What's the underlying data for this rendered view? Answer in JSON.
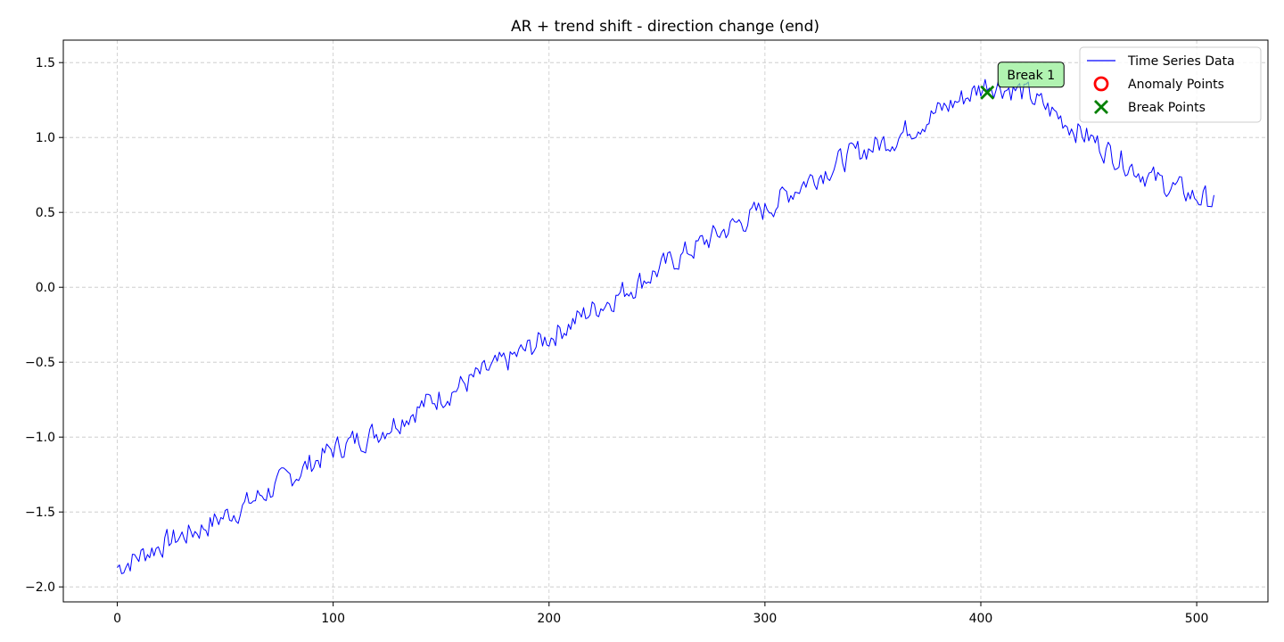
{
  "chart_data": {
    "type": "line",
    "title": "AR + trend shift - direction change (end)",
    "xlabel": "",
    "ylabel": "",
    "xlim": [
      -25,
      533
    ],
    "ylim": [
      -2.1,
      1.65
    ],
    "x_ticks": [
      0,
      100,
      200,
      300,
      400,
      500
    ],
    "x_tick_labels": [
      "0",
      "100",
      "200",
      "300",
      "400",
      "500"
    ],
    "y_ticks": [
      -2.0,
      -1.5,
      -1.0,
      -0.5,
      0.0,
      0.5,
      1.0,
      1.5
    ],
    "y_tick_labels": [
      "−2.0",
      "−1.5",
      "−1.0",
      "−0.5",
      "0.0",
      "0.5",
      "1.0",
      "1.5"
    ],
    "grid": true,
    "legend_position": "top-right",
    "series": [
      {
        "name": "Time Series Data",
        "color": "#0000ff",
        "n_points": 508,
        "anchors": {
          "x": [
            0,
            20,
            40,
            60,
            80,
            100,
            120,
            140,
            160,
            180,
            200,
            220,
            240,
            260,
            280,
            300,
            320,
            340,
            360,
            380,
            400,
            403,
            420,
            440,
            460,
            480,
            500,
            508
          ],
          "y": [
            -1.87,
            -1.72,
            -1.6,
            -1.45,
            -1.27,
            -1.08,
            -0.97,
            -0.8,
            -0.65,
            -0.5,
            -0.33,
            -0.15,
            0.02,
            0.2,
            0.37,
            0.52,
            0.72,
            0.88,
            1.0,
            1.17,
            1.33,
            1.37,
            1.3,
            1.1,
            0.9,
            0.72,
            0.6,
            0.58
          ]
        },
        "noise_amplitude": 0.06
      }
    ],
    "anomaly_points": [],
    "break_points": [
      {
        "x": 403,
        "y": 1.3
      }
    ],
    "annotations": [
      {
        "text": "Break 1",
        "x": 403,
        "y": 1.3,
        "color": "#90ee90"
      }
    ],
    "legend": [
      {
        "label": "Time Series Data",
        "marker": "line",
        "color": "#0000ff"
      },
      {
        "label": "Anomaly Points",
        "marker": "circle",
        "color": "#ff0000"
      },
      {
        "label": "Break Points",
        "marker": "x",
        "color": "#008000"
      }
    ]
  }
}
